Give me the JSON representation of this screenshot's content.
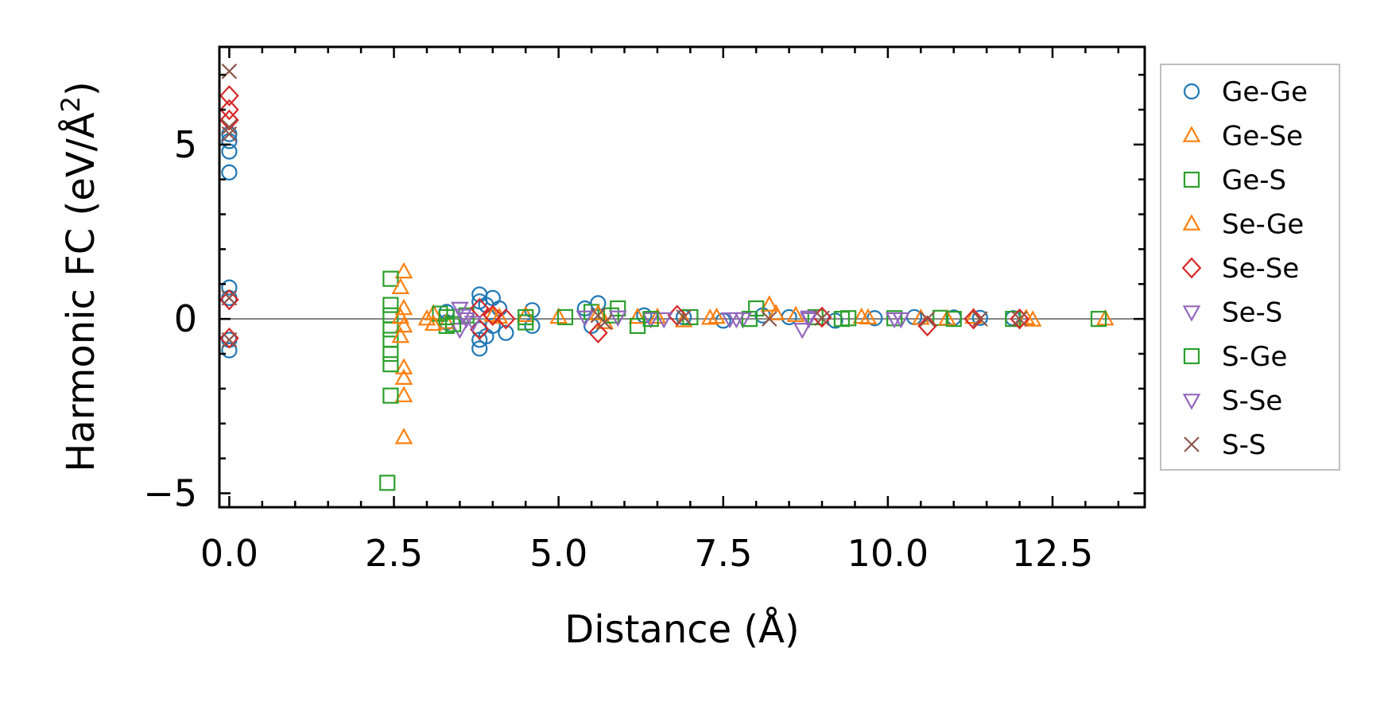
{
  "chart_data": {
    "type": "scatter",
    "title": "",
    "xlabel": "Distance (Å)",
    "ylabel": "Harmonic FC (eV/Å2)",
    "ylabel_parts": {
      "main": "Harmonic FC (eV/Å",
      "superscript": "2",
      "close": ")"
    },
    "xlim": [
      -0.15,
      13.9
    ],
    "ylim": [
      -5.4,
      7.8
    ],
    "xticks": [
      0.0,
      2.5,
      5.0,
      7.5,
      10.0,
      12.5
    ],
    "xtick_labels": [
      "0.0",
      "2.5",
      "5.0",
      "7.5",
      "10.0",
      "12.5"
    ],
    "yticks": [
      -5,
      0,
      5
    ],
    "ytick_labels": [
      "−5",
      "0",
      "5"
    ],
    "zero_line": true,
    "legend_position": "outside-right",
    "series": [
      {
        "name": "Ge-Ge",
        "marker": "circle",
        "color": "#1f77b4",
        "points": [
          [
            0,
            5.1
          ],
          [
            0,
            4.8
          ],
          [
            0,
            4.2
          ],
          [
            0,
            5.3
          ],
          [
            0,
            0.9
          ],
          [
            0,
            0.6
          ],
          [
            0,
            -0.6
          ],
          [
            0,
            -0.9
          ],
          [
            3.3,
            0.2
          ],
          [
            3.3,
            -0.1
          ],
          [
            3.8,
            0.7
          ],
          [
            3.8,
            0.5
          ],
          [
            3.8,
            -0.3
          ],
          [
            3.8,
            -0.6
          ],
          [
            3.8,
            -0.85
          ],
          [
            3.9,
            0.4
          ],
          [
            3.9,
            -0.5
          ],
          [
            4.0,
            0.6
          ],
          [
            4.0,
            -0.2
          ],
          [
            4.1,
            0.3
          ],
          [
            4.2,
            -0.4
          ],
          [
            4.6,
            0.25
          ],
          [
            4.6,
            -0.2
          ],
          [
            5.4,
            0.3
          ],
          [
            5.5,
            -0.2
          ],
          [
            5.6,
            0.45
          ],
          [
            6.3,
            0.1
          ],
          [
            6.9,
            0.05
          ],
          [
            7.5,
            -0.05
          ],
          [
            8.1,
            0.1
          ],
          [
            8.5,
            0.05
          ],
          [
            9.2,
            -0.05
          ],
          [
            9.8,
            0.02
          ],
          [
            10.4,
            0.05
          ],
          [
            11.0,
            0.04
          ],
          [
            11.4,
            0.03
          ],
          [
            11.9,
            0.02
          ]
        ]
      },
      {
        "name": "Ge-Se",
        "marker": "triangle-up",
        "color": "#ff7f0e",
        "points": [
          [
            2.65,
            1.35
          ],
          [
            2.65,
            0.3
          ],
          [
            2.65,
            -0.2
          ],
          [
            2.65,
            -1.4
          ],
          [
            2.65,
            -1.7
          ],
          [
            2.65,
            -2.2
          ],
          [
            2.65,
            -3.4
          ],
          [
            3.0,
            0.0
          ],
          [
            3.1,
            0.15
          ],
          [
            3.3,
            -0.1
          ],
          [
            4.1,
            0.05
          ],
          [
            4.5,
            0.1
          ],
          [
            5.0,
            0.05
          ],
          [
            5.7,
            -0.1
          ],
          [
            6.2,
            0.05
          ],
          [
            6.9,
            -0.05
          ],
          [
            7.4,
            0.05
          ],
          [
            8.2,
            0.4
          ],
          [
            8.6,
            0.1
          ],
          [
            9.6,
            0.05
          ],
          [
            10.5,
            0.02
          ],
          [
            11.3,
            0.05
          ],
          [
            12.1,
            0.02
          ],
          [
            13.3,
            0.0
          ]
        ]
      },
      {
        "name": "Ge-S",
        "marker": "square",
        "color": "#2ca02c",
        "points": [
          [
            2.45,
            1.15
          ],
          [
            2.45,
            0.4
          ],
          [
            2.45,
            0.1
          ],
          [
            2.45,
            -0.3
          ],
          [
            2.45,
            -0.6
          ],
          [
            2.45,
            -1.0
          ],
          [
            2.45,
            -1.3
          ],
          [
            2.45,
            -2.2
          ],
          [
            2.4,
            -4.7
          ],
          [
            3.2,
            0.15
          ],
          [
            3.3,
            -0.2
          ],
          [
            3.6,
            0.1
          ],
          [
            4.5,
            -0.1
          ],
          [
            5.1,
            0.05
          ],
          [
            5.5,
            0.2
          ],
          [
            5.9,
            0.3
          ],
          [
            6.2,
            -0.2
          ],
          [
            7.0,
            0.05
          ],
          [
            8.0,
            0.3
          ],
          [
            8.9,
            0.05
          ],
          [
            9.3,
            0.0
          ],
          [
            10.1,
            0.02
          ],
          [
            10.8,
            0.03
          ],
          [
            11.9,
            0.0
          ],
          [
            13.2,
            0.0
          ]
        ]
      },
      {
        "name": "Se-Ge",
        "marker": "triangle-up",
        "color": "#ff7f0e",
        "points": [
          [
            2.6,
            0.9
          ],
          [
            2.6,
            0.05
          ],
          [
            2.6,
            -0.5
          ],
          [
            3.1,
            -0.15
          ],
          [
            4.0,
            0.1
          ],
          [
            5.6,
            0.15
          ],
          [
            6.5,
            0.05
          ],
          [
            7.3,
            0.02
          ],
          [
            8.3,
            0.15
          ],
          [
            9.7,
            0.03
          ],
          [
            10.9,
            0.0
          ],
          [
            12.2,
            -0.03
          ]
        ]
      },
      {
        "name": "Se-Se",
        "marker": "diamond",
        "color": "#d62728",
        "points": [
          [
            0,
            6.4
          ],
          [
            0,
            6.0
          ],
          [
            0,
            5.7
          ],
          [
            0,
            0.55
          ],
          [
            0,
            -0.55
          ],
          [
            3.8,
            0.3
          ],
          [
            3.8,
            -0.3
          ],
          [
            4.0,
            0.1
          ],
          [
            4.2,
            0.0
          ],
          [
            5.6,
            -0.4
          ],
          [
            6.8,
            0.1
          ],
          [
            9.0,
            0.05
          ],
          [
            10.6,
            -0.2
          ],
          [
            11.3,
            0.0
          ],
          [
            12.0,
            0.0
          ]
        ]
      },
      {
        "name": "Se-S",
        "marker": "triangle-down",
        "color": "#9467bd",
        "points": [
          [
            3.5,
            0.3
          ],
          [
            3.5,
            -0.3
          ],
          [
            3.6,
            0.0
          ],
          [
            5.4,
            0.05
          ],
          [
            6.4,
            0.0
          ],
          [
            6.6,
            0.0
          ],
          [
            7.6,
            0.0
          ],
          [
            7.8,
            0.0
          ],
          [
            8.7,
            -0.3
          ],
          [
            8.8,
            0.05
          ],
          [
            10.1,
            0.0
          ]
        ]
      },
      {
        "name": "S-Ge",
        "marker": "square",
        "color": "#2ca02c",
        "points": [
          [
            3.3,
            0.05
          ],
          [
            3.4,
            -0.15
          ],
          [
            4.5,
            0.05
          ],
          [
            5.8,
            0.1
          ],
          [
            6.4,
            0.0
          ],
          [
            7.9,
            0.0
          ],
          [
            9.4,
            0.02
          ],
          [
            11.0,
            0.0
          ]
        ]
      },
      {
        "name": "S-Se",
        "marker": "triangle-down",
        "color": "#9467bd",
        "points": [
          [
            3.55,
            0.1
          ],
          [
            3.7,
            -0.1
          ],
          [
            5.9,
            0.05
          ],
          [
            7.7,
            0.0
          ],
          [
            8.8,
            0.0
          ],
          [
            10.2,
            0.0
          ]
        ]
      },
      {
        "name": "S-S",
        "marker": "x",
        "color": "#8c564b",
        "points": [
          [
            0,
            7.1
          ],
          [
            0,
            5.3
          ],
          [
            0,
            5.5
          ],
          [
            0,
            0.6
          ],
          [
            0,
            -0.6
          ],
          [
            5.6,
            0.1
          ],
          [
            5.7,
            -0.1
          ],
          [
            6.9,
            0.05
          ],
          [
            8.2,
            0.0
          ],
          [
            9.0,
            0.02
          ],
          [
            10.6,
            0.0
          ],
          [
            11.4,
            0.0
          ],
          [
            12.0,
            0.0
          ]
        ]
      }
    ]
  }
}
